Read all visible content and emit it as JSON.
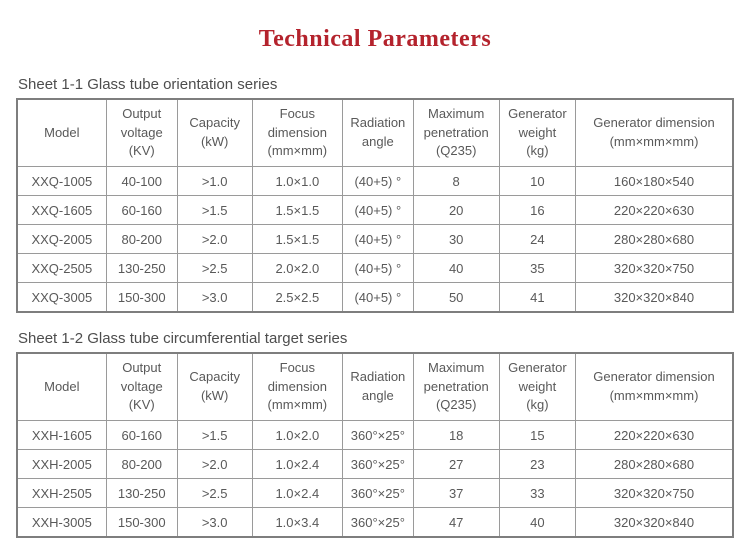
{
  "page": {
    "title": "Technical Parameters"
  },
  "colors": {
    "title_red": "#b4232d",
    "table_text": "#595959",
    "border_gray": "#9a9a9a"
  },
  "tables": [
    {
      "caption": "Sheet 1-1 Glass tube orientation series",
      "headers": [
        "Model",
        "Output\nvoltage\n(KV)",
        "Capacity\n(kW)",
        "Focus\ndimension\n(mm×mm)",
        "Radiation\nangle",
        "Maximum\npenetration\n(Q235)",
        "Generator\nweight\n(kg)",
        "Generator dimension\n(mm×mm×mm)"
      ],
      "rows": [
        [
          "XXQ-1005",
          "40-100",
          ">1.0",
          "1.0×1.0",
          "(40+5) °",
          "8",
          "10",
          "160×180×540"
        ],
        [
          "XXQ-1605",
          "60-160",
          ">1.5",
          "1.5×1.5",
          "(40+5) °",
          "20",
          "16",
          "220×220×630"
        ],
        [
          "XXQ-2005",
          "80-200",
          ">2.0",
          "1.5×1.5",
          "(40+5) °",
          "30",
          "24",
          "280×280×680"
        ],
        [
          "XXQ-2505",
          "130-250",
          ">2.5",
          "2.0×2.0",
          "(40+5) °",
          "40",
          "35",
          "320×320×750"
        ],
        [
          "XXQ-3005",
          "150-300",
          ">3.0",
          "2.5×2.5",
          "(40+5) °",
          "50",
          "41",
          "320×320×840"
        ]
      ]
    },
    {
      "caption": "Sheet 1-2 Glass tube circumferential target series",
      "headers": [
        "Model",
        "Output\nvoltage\n(KV)",
        "Capacity\n(kW)",
        "Focus\ndimension\n(mm×mm)",
        "Radiation\nangle",
        "Maximum\npenetration\n(Q235)",
        "Generator\nweight\n(kg)",
        "Generator dimension\n(mm×mm×mm)"
      ],
      "rows": [
        [
          "XXH-1605",
          "60-160",
          ">1.5",
          "1.0×2.0",
          "360°×25°",
          "18",
          "15",
          "220×220×630"
        ],
        [
          "XXH-2005",
          "80-200",
          ">2.0",
          "1.0×2.4",
          "360°×25°",
          "27",
          "23",
          "280×280×680"
        ],
        [
          "XXH-2505",
          "130-250",
          ">2.5",
          "1.0×2.4",
          "360°×25°",
          "37",
          "33",
          "320×320×750"
        ],
        [
          "XXH-3005",
          "150-300",
          ">3.0",
          "1.0×3.4",
          "360°×25°",
          "47",
          "40",
          "320×320×840"
        ]
      ]
    }
  ]
}
